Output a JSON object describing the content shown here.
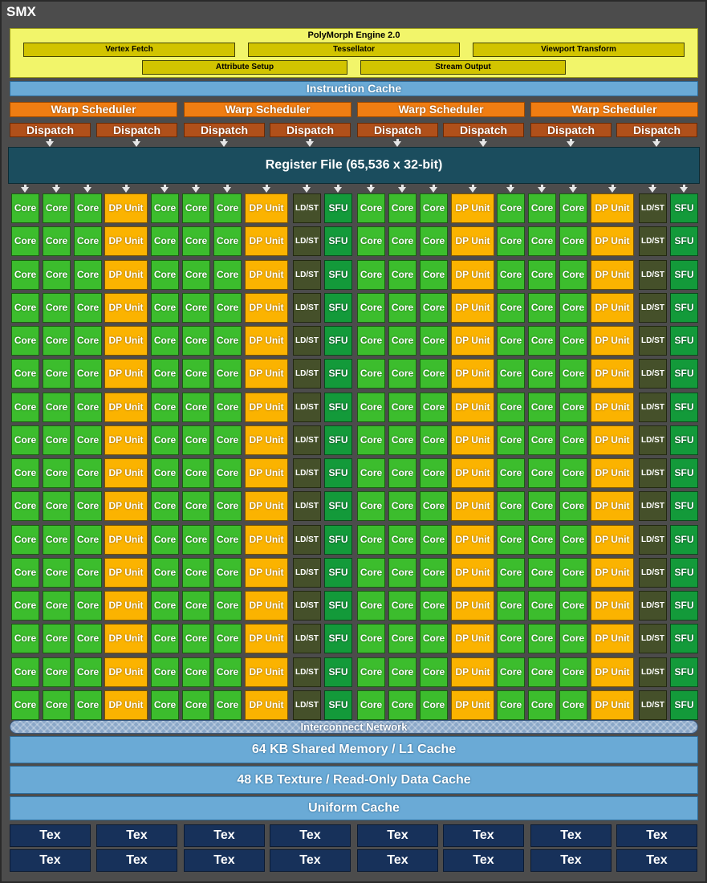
{
  "smx_title": "SMX",
  "polymorph": {
    "title": "PolyMorph Engine 2.0",
    "units": [
      "Vertex Fetch",
      "Tessellator",
      "Viewport Transform",
      "Attribute Setup",
      "Stream Output"
    ]
  },
  "instruction_cache": "Instruction Cache",
  "warp_schedulers": [
    "Warp Scheduler",
    "Warp Scheduler",
    "Warp Scheduler",
    "Warp Scheduler"
  ],
  "dispatch_units": [
    "Dispatch",
    "Dispatch",
    "Dispatch",
    "Dispatch",
    "Dispatch",
    "Dispatch",
    "Dispatch",
    "Dispatch"
  ],
  "register_file": "Register File (65,536 x 32-bit)",
  "execution_grid": {
    "rows": 16,
    "column_types": [
      "core",
      "core",
      "core",
      "dp",
      "core",
      "core",
      "core",
      "dp",
      "ldst",
      "sfu",
      "core",
      "core",
      "core",
      "dp",
      "core",
      "core",
      "core",
      "dp",
      "ldst",
      "sfu"
    ],
    "labels": {
      "core": "Core",
      "dp": "DP Unit",
      "ldst": "LD/ST",
      "sfu": "SFU"
    }
  },
  "interconnect": "Interconnect Network",
  "shared_memory": "64 KB Shared Memory / L1 Cache",
  "texture_cache": "48 KB Texture / Read-Only Data Cache",
  "uniform_cache": "Uniform Cache",
  "tex_units": {
    "label": "Tex",
    "count": 16
  },
  "colors": {
    "background": "#4c4c4c",
    "core": "#3cbd2d",
    "dp_unit": "#fbb300",
    "ldst": "#45502a",
    "sfu": "#139a3a",
    "warp_scheduler": "#ef7d12",
    "dispatch": "#b0501a",
    "register_file": "#1b4d5e",
    "cache": "#6aaad6",
    "tex": "#17315a",
    "polymorph": "#f2f56a"
  }
}
